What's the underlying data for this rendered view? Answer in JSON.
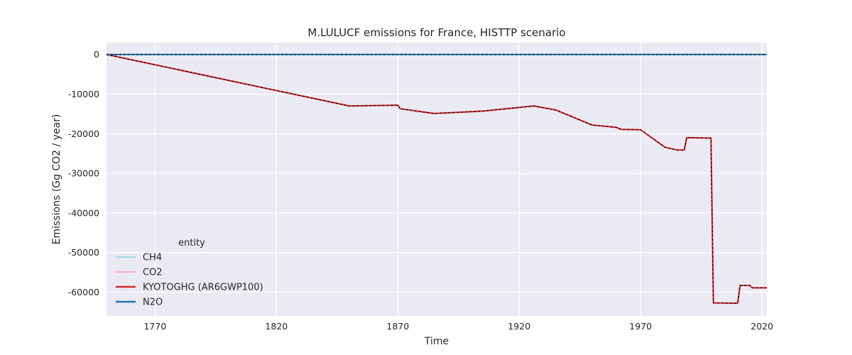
{
  "chart_data": {
    "type": "line",
    "title": "M.LULUCF emissions for France, HISTTP scenario",
    "xlabel": "Time",
    "ylabel": "Emissions (Gg CO2 / year)",
    "xlim": [
      1750,
      2022
    ],
    "ylim": [
      -66000,
      3000
    ],
    "xticks": [
      1770,
      1820,
      1870,
      1920,
      1970,
      2020
    ],
    "yticks": [
      0,
      -10000,
      -20000,
      -30000,
      -40000,
      -50000,
      -60000
    ],
    "grid": true,
    "legend": {
      "title": "entity",
      "position": "lower-left"
    },
    "series": [
      {
        "name": "CH4",
        "color": "#add8e6",
        "x": [
          1750,
          2022
        ],
        "y": [
          0,
          0
        ]
      },
      {
        "name": "CO2",
        "color": "#f4b6d2",
        "x": [
          1750,
          1850,
          1870,
          1871,
          1885,
          1905,
          1926,
          1935,
          1950,
          1960,
          1962,
          1970,
          1980,
          1985,
          1988,
          1989,
          1999,
          2000,
          2010,
          2011,
          2015,
          2016,
          2022
        ],
        "y": [
          0,
          -13000,
          -12800,
          -13700,
          -14900,
          -14300,
          -13000,
          -14000,
          -17800,
          -18400,
          -18900,
          -19000,
          -23400,
          -24100,
          -24100,
          -21000,
          -21100,
          -62700,
          -62800,
          -58300,
          -58300,
          -58900,
          -58900
        ]
      },
      {
        "name": "KYOTOGHG (AR6GWP100)",
        "color": "#d62728",
        "x": [
          1750,
          1850,
          1870,
          1871,
          1885,
          1905,
          1926,
          1935,
          1950,
          1960,
          1962,
          1970,
          1980,
          1985,
          1988,
          1989,
          1999,
          2000,
          2010,
          2011,
          2015,
          2016,
          2022
        ],
        "y": [
          0,
          -13000,
          -12800,
          -13700,
          -14900,
          -14300,
          -13000,
          -14000,
          -17800,
          -18400,
          -18900,
          -19000,
          -23400,
          -24100,
          -24100,
          -21000,
          -21100,
          -62700,
          -62800,
          -58300,
          -58300,
          -58900,
          -58900
        ]
      },
      {
        "name": "N2O",
        "color": "#1f77b4",
        "x": [
          1750,
          2022
        ],
        "y": [
          0,
          0
        ]
      }
    ]
  }
}
